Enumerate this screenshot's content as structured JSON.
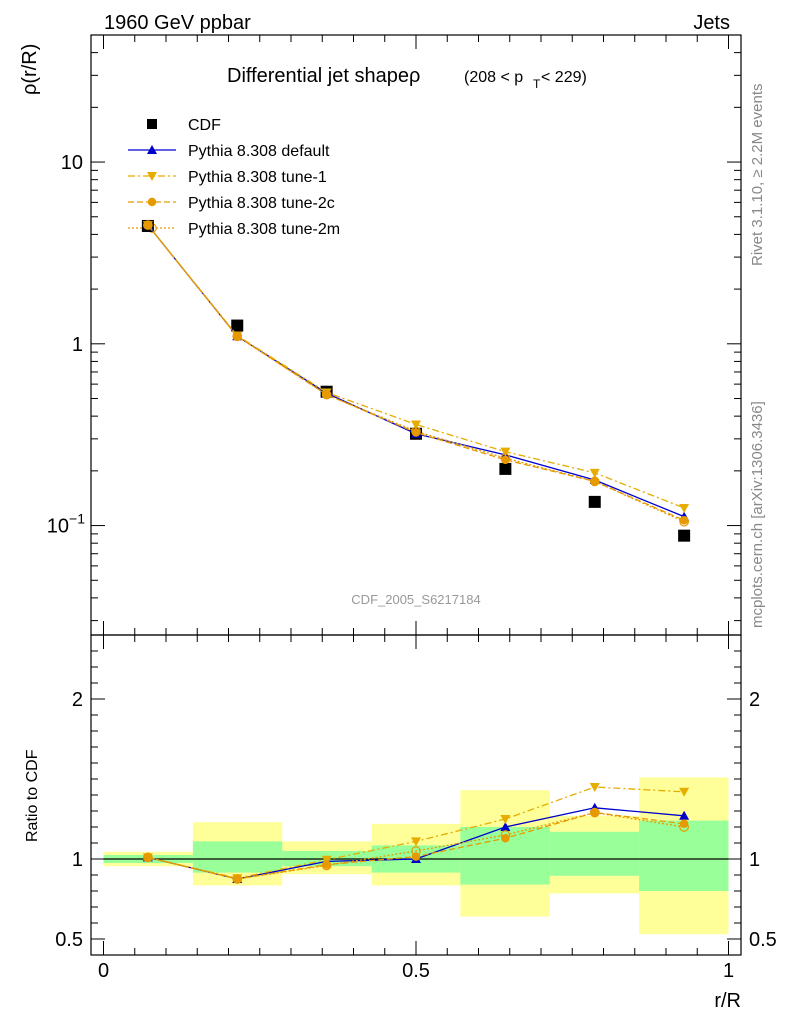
{
  "header": {
    "left": "1960 GeV ppbar",
    "right": "Jets"
  },
  "side_text": {
    "rivet": "Rivet 3.1.10, ≥ 2.2M events",
    "mcplots": "mcplots.cern.ch [arXiv:1306.3436]"
  },
  "chart_data": [
    {
      "type": "line",
      "panel": "main",
      "title": "Differential jet shapeρ",
      "title_suffix": "(208 < p",
      "title_sub": "T",
      "title_end": " < 229)",
      "ylabel": "ρ(r/R)",
      "xlabel": "",
      "yscale": "log",
      "xlim": [
        -0.02,
        1.02
      ],
      "ylim": [
        0.025,
        50
      ],
      "yticks": [
        {
          "value": 10,
          "label": "10"
        },
        {
          "value": 1,
          "label": "1"
        },
        {
          "value": 0.1,
          "label": "10",
          "sup": "−1"
        }
      ],
      "watermark": "CDF_2005_S6217184",
      "legend_position": "top-left",
      "x": [
        0.071,
        0.214,
        0.357,
        0.5,
        0.643,
        0.786,
        0.929
      ],
      "series": [
        {
          "name": "CDF",
          "color": "#000000",
          "marker": "square",
          "line": "none",
          "values": [
            4.45,
            1.26,
            0.545,
            0.32,
            0.205,
            0.135,
            0.088
          ]
        },
        {
          "name": "Pythia 8.308 default",
          "color": "#0000cc",
          "marker": "triangle-up",
          "line": "solid",
          "values": [
            4.5,
            1.1,
            0.535,
            0.32,
            0.245,
            0.178,
            0.112
          ]
        },
        {
          "name": "Pythia 8.308 tune-1",
          "color": "#e6ac00",
          "marker": "triangle-down",
          "line": "dashdot",
          "values": [
            4.5,
            1.11,
            0.54,
            0.36,
            0.255,
            0.195,
            0.125
          ]
        },
        {
          "name": "Pythia 8.308 tune-2c",
          "color": "#e69a00",
          "marker": "circle",
          "line": "dashed",
          "values": [
            4.5,
            1.1,
            0.525,
            0.325,
            0.23,
            0.175,
            0.107
          ]
        },
        {
          "name": "Pythia 8.308 tune-2m",
          "color": "#e69a00",
          "marker": "circle-open",
          "line": "dotted",
          "values": [
            4.5,
            1.1,
            0.525,
            0.33,
            0.235,
            0.175,
            0.105
          ]
        }
      ]
    },
    {
      "type": "line",
      "panel": "ratio",
      "ylabel": "Ratio to CDF",
      "xlabel": "r/R",
      "xlim": [
        -0.02,
        1.02
      ],
      "ylim": [
        0.4,
        2.4
      ],
      "xticks": [
        {
          "value": 0,
          "label": "0"
        },
        {
          "value": 0.5,
          "label": "0.5"
        },
        {
          "value": 1,
          "label": "1"
        }
      ],
      "yticks": [
        {
          "value": 2,
          "label": "2"
        },
        {
          "value": 1,
          "label": "1"
        },
        {
          "value": 0.5,
          "label": "0.5"
        }
      ],
      "bands": {
        "edges": [
          0,
          0.143,
          0.286,
          0.429,
          0.571,
          0.714,
          0.857,
          1.0
        ],
        "stat_color": "#99ff99",
        "total_color": "#ffff99",
        "stat": [
          [
            0.975,
            1.025
          ],
          [
            0.915,
            1.11
          ],
          [
            0.955,
            1.05
          ],
          [
            0.915,
            1.085
          ],
          [
            0.84,
            1.2
          ],
          [
            0.895,
            1.17
          ],
          [
            0.8,
            1.24
          ]
        ],
        "total": [
          [
            0.955,
            1.045
          ],
          [
            0.835,
            1.23
          ],
          [
            0.905,
            1.11
          ],
          [
            0.835,
            1.22
          ],
          [
            0.64,
            1.43
          ],
          [
            0.785,
            1.27
          ],
          [
            0.53,
            1.51
          ]
        ]
      },
      "x": [
        0.071,
        0.214,
        0.357,
        0.5,
        0.643,
        0.786,
        0.929
      ],
      "series": [
        {
          "name": "Pythia 8.308 default",
          "color": "#0000cc",
          "marker": "triangle-up",
          "line": "solid",
          "values": [
            1.01,
            0.875,
            0.985,
            1.0,
            1.2,
            1.32,
            1.27
          ]
        },
        {
          "name": "Pythia 8.308 tune-1",
          "color": "#e6ac00",
          "marker": "triangle-down",
          "line": "dashdot",
          "values": [
            1.01,
            0.88,
            0.995,
            1.11,
            1.25,
            1.45,
            1.42
          ]
        },
        {
          "name": "Pythia 8.308 tune-2c",
          "color": "#e69a00",
          "marker": "circle",
          "line": "dashed",
          "values": [
            1.01,
            0.875,
            0.965,
            1.015,
            1.13,
            1.29,
            1.22
          ]
        },
        {
          "name": "Pythia 8.308 tune-2m",
          "color": "#e69a00",
          "marker": "circle-open",
          "line": "dotted",
          "values": [
            1.01,
            0.875,
            0.96,
            1.05,
            1.15,
            1.29,
            1.2
          ]
        }
      ]
    }
  ]
}
